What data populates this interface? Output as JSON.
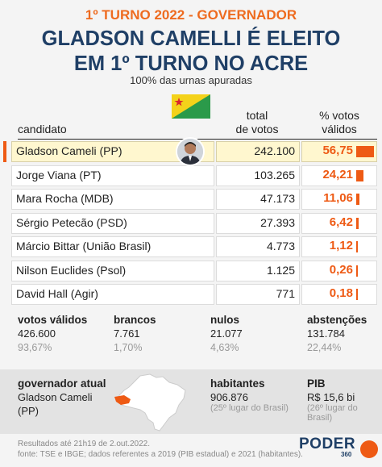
{
  "header": {
    "kicker": "1º TURNO 2022 - GOVERNADOR",
    "title_line1": "GLADSON CAMELLI É ELEITO",
    "title_line2": "EM 1º TURNO NO ACRE",
    "subtitle": "100% das urnas apuradas"
  },
  "table": {
    "col_candidate": "candidato",
    "col_total_line1": "total",
    "col_total_line2": "de votos",
    "col_pct_line1": "% votos",
    "col_pct_line2": "válidos",
    "rows": [
      {
        "name": "Gladson Cameli (PP)",
        "votes": "242.100",
        "pct": "56,75",
        "pct_value": 56.75
      },
      {
        "name": "Jorge Viana (PT)",
        "votes": "103.265",
        "pct": "24,21",
        "pct_value": 24.21
      },
      {
        "name": "Mara Rocha (MDB)",
        "votes": "47.173",
        "pct": "11,06",
        "pct_value": 11.06
      },
      {
        "name": "Sérgio Petecão (PSD)",
        "votes": "27.393",
        "pct": "6,42",
        "pct_value": 6.42
      },
      {
        "name": "Márcio Bittar (União Brasil)",
        "votes": "4.773",
        "pct": "1,12",
        "pct_value": 1.12
      },
      {
        "name": "Nilson Euclides (Psol)",
        "votes": "1.125",
        "pct": "0,26",
        "pct_value": 0.26
      },
      {
        "name": "David Hall (Agir)",
        "votes": "771",
        "pct": "0,18",
        "pct_value": 0.18
      }
    ]
  },
  "summary": {
    "validos": {
      "label": "votos válidos",
      "value": "426.600",
      "pct": "93,67%"
    },
    "brancos": {
      "label": "brancos",
      "value": "7.761",
      "pct": "1,70%"
    },
    "nulos": {
      "label": "nulos",
      "value": "21.077",
      "pct": "4,63%"
    },
    "abstencoes": {
      "label": "abstenções",
      "value": "131.784",
      "pct": "22,44%"
    }
  },
  "info": {
    "gov_label": "governador atual",
    "gov_name_line1": "Gladson Cameli",
    "gov_name_line2": "(PP)",
    "hab_label": "habitantes",
    "hab_value": "906.876",
    "hab_rank": "(25º lugar do Brasil)",
    "pib_label": "PIB",
    "pib_value": "R$ 15,6 bi",
    "pib_rank": "(26º lugar do Brasil)"
  },
  "footer": {
    "line1": "Resultados até 21h19 de 2.out.2022.",
    "line2": "fonte: TSE e IBGE; dados referentes a 2019 (PIB estadual) e 2021 (habitantes)."
  },
  "logo": {
    "main": "PODER",
    "sub": "360"
  },
  "colors": {
    "accent": "#ee5a14",
    "title": "#1f3f66",
    "winner_bg": "#fff7cf"
  }
}
